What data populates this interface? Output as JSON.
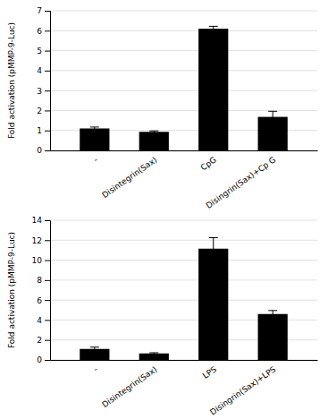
{
  "chart_data": [
    {
      "type": "bar",
      "categories": [
        "-",
        "Disintegrin(Sax)",
        "CpG",
        "Disingrin(Sax)+Cp G"
      ],
      "values": [
        1.1,
        0.93,
        6.1,
        1.68
      ],
      "errors": [
        0.07,
        0.05,
        0.12,
        0.28
      ],
      "ylabel": "Fold activation (pMMP-9-Luc)",
      "ylim": [
        0,
        7
      ],
      "yticks": [
        0,
        1,
        2,
        3,
        4,
        5,
        6,
        7
      ],
      "color": "#000000",
      "grid": true
    },
    {
      "type": "bar",
      "categories": [
        "-",
        "Disintegrin(Sax)",
        "LPS",
        "Disingrin(Sax)+LPS"
      ],
      "values": [
        1.1,
        0.65,
        11.15,
        4.6
      ],
      "errors": [
        0.18,
        0.07,
        1.1,
        0.35
      ],
      "ylabel": "Fold activation (pMMP-9-Luc)",
      "ylim": [
        0,
        14
      ],
      "yticks": [
        0,
        2,
        4,
        6,
        8,
        10,
        12,
        14
      ],
      "color": "#000000",
      "grid": true
    }
  ]
}
